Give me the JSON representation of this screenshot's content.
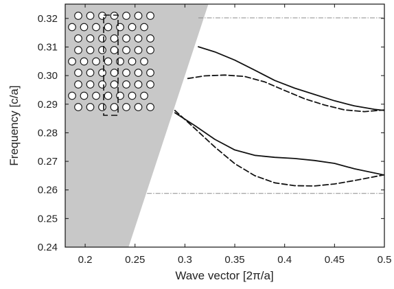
{
  "chart_data": {
    "type": "line",
    "title": "",
    "xlabel": "Wave vector [2π/a]",
    "ylabel": "Frequency [c/a]",
    "xlim": [
      0.18,
      0.5
    ],
    "ylim": [
      0.24,
      0.325
    ],
    "x_ticks": [
      0.2,
      0.25,
      0.3,
      0.35,
      0.4,
      0.45,
      0.5
    ],
    "x_tick_labels": [
      "0.2",
      "0.25",
      "0.3",
      "0.35",
      "0.4",
      "0.45",
      "0.5"
    ],
    "y_ticks": [
      0.24,
      0.25,
      0.26,
      0.27,
      0.28,
      0.29,
      0.3,
      0.31,
      0.32
    ],
    "y_tick_labels": [
      "0.24",
      "0.25",
      "0.26",
      "0.27",
      "0.28",
      "0.29",
      "0.30",
      "0.31",
      "0.32"
    ],
    "grid": false,
    "legend": "none",
    "light_cone": {
      "color": "#c8c8c8",
      "bottom_edge_x": 0.2435,
      "top_edge_x": 0.3235
    },
    "band_edges": [
      {
        "y": 0.3202,
        "x_start": 0.3135,
        "x_end": 0.5,
        "style": "dash-dot",
        "color": "#888888"
      },
      {
        "y": 0.2588,
        "x_start": 0.262,
        "x_end": 0.5,
        "style": "dash-dot",
        "color": "#888888"
      }
    ],
    "series": [
      {
        "style": "solid",
        "color": "#111111",
        "x": [
          0.3135,
          0.33,
          0.35,
          0.37,
          0.39,
          0.41,
          0.43,
          0.45,
          0.47,
          0.49,
          0.5
        ],
        "y": [
          0.3101,
          0.3083,
          0.3054,
          0.3019,
          0.2983,
          0.2956,
          0.2934,
          0.2912,
          0.2894,
          0.2882,
          0.2878
        ]
      },
      {
        "style": "dashed",
        "color": "#111111",
        "x": [
          0.303,
          0.32,
          0.34,
          0.36,
          0.38,
          0.4,
          0.42,
          0.44,
          0.46,
          0.48,
          0.5
        ],
        "y": [
          0.299,
          0.2999,
          0.3002,
          0.2997,
          0.2978,
          0.2948,
          0.2919,
          0.2897,
          0.288,
          0.2874,
          0.288
        ]
      },
      {
        "style": "solid",
        "color": "#111111",
        "x": [
          0.29,
          0.31,
          0.33,
          0.35,
          0.37,
          0.39,
          0.41,
          0.43,
          0.45,
          0.47,
          0.5
        ],
        "y": [
          0.287,
          0.2825,
          0.2777,
          0.274,
          0.2721,
          0.2714,
          0.271,
          0.2703,
          0.2693,
          0.2674,
          0.2652
        ]
      },
      {
        "style": "dashed",
        "color": "#111111",
        "x": [
          0.29,
          0.31,
          0.33,
          0.35,
          0.37,
          0.39,
          0.41,
          0.43,
          0.45,
          0.47,
          0.5
        ],
        "y": [
          0.2878,
          0.2815,
          0.275,
          0.2692,
          0.265,
          0.2625,
          0.2615,
          0.2614,
          0.2621,
          0.2633,
          0.2653
        ]
      }
    ],
    "inset": {
      "description_free": true,
      "hole_fill": "#ffffff",
      "hole_stroke": "#111111",
      "rows_per_block": 3,
      "blocks": 3,
      "holes_per_row": 7
    }
  }
}
